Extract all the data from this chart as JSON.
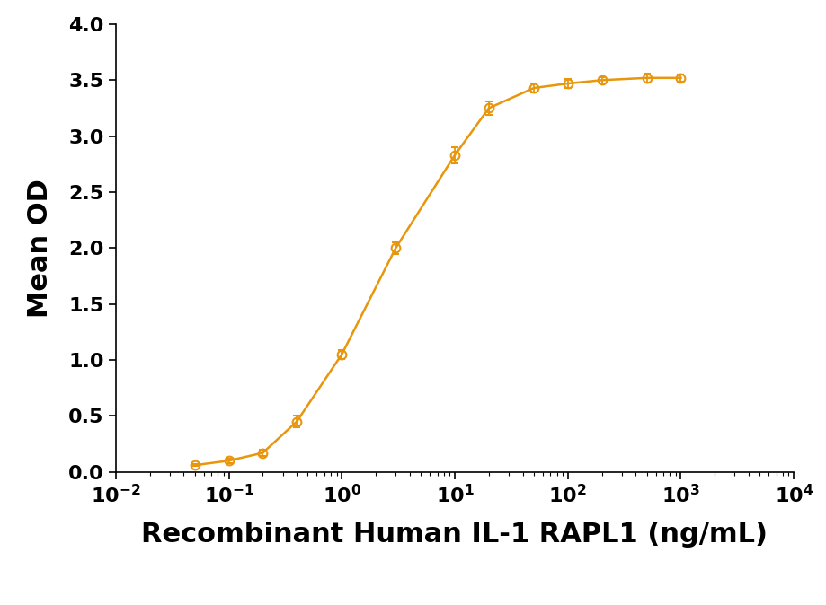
{
  "x_data": [
    0.05,
    0.1,
    0.2,
    0.4,
    1.0,
    3.0,
    10.0,
    20.0,
    50.0,
    100.0,
    200.0,
    500.0,
    1000.0
  ],
  "y_data": [
    0.06,
    0.1,
    0.17,
    0.45,
    1.05,
    2.0,
    2.83,
    3.25,
    3.43,
    3.47,
    3.5,
    3.52,
    3.52
  ],
  "y_err": [
    0.01,
    0.02,
    0.03,
    0.05,
    0.04,
    0.05,
    0.07,
    0.06,
    0.04,
    0.04,
    0.03,
    0.04,
    0.03
  ],
  "color": "#E8960C",
  "marker": "o",
  "markersize": 7,
  "linewidth": 1.8,
  "xlabel": "Recombinant Human IL-1 RAPL1 (ng/mL)",
  "ylabel": "Mean OD",
  "xlim": [
    0.01,
    10000
  ],
  "ylim": [
    0.0,
    4.0
  ],
  "yticks": [
    0.0,
    0.5,
    1.0,
    1.5,
    2.0,
    2.5,
    3.0,
    3.5,
    4.0
  ],
  "xlabel_fontsize": 22,
  "xlabel_fontweight": "bold",
  "ylabel_fontsize": 22,
  "ylabel_fontweight": "bold",
  "tick_fontsize": 16,
  "tick_fontweight": "bold",
  "background_color": "#ffffff",
  "figsize": [
    9.2,
    6.74
  ],
  "dpi": 100
}
